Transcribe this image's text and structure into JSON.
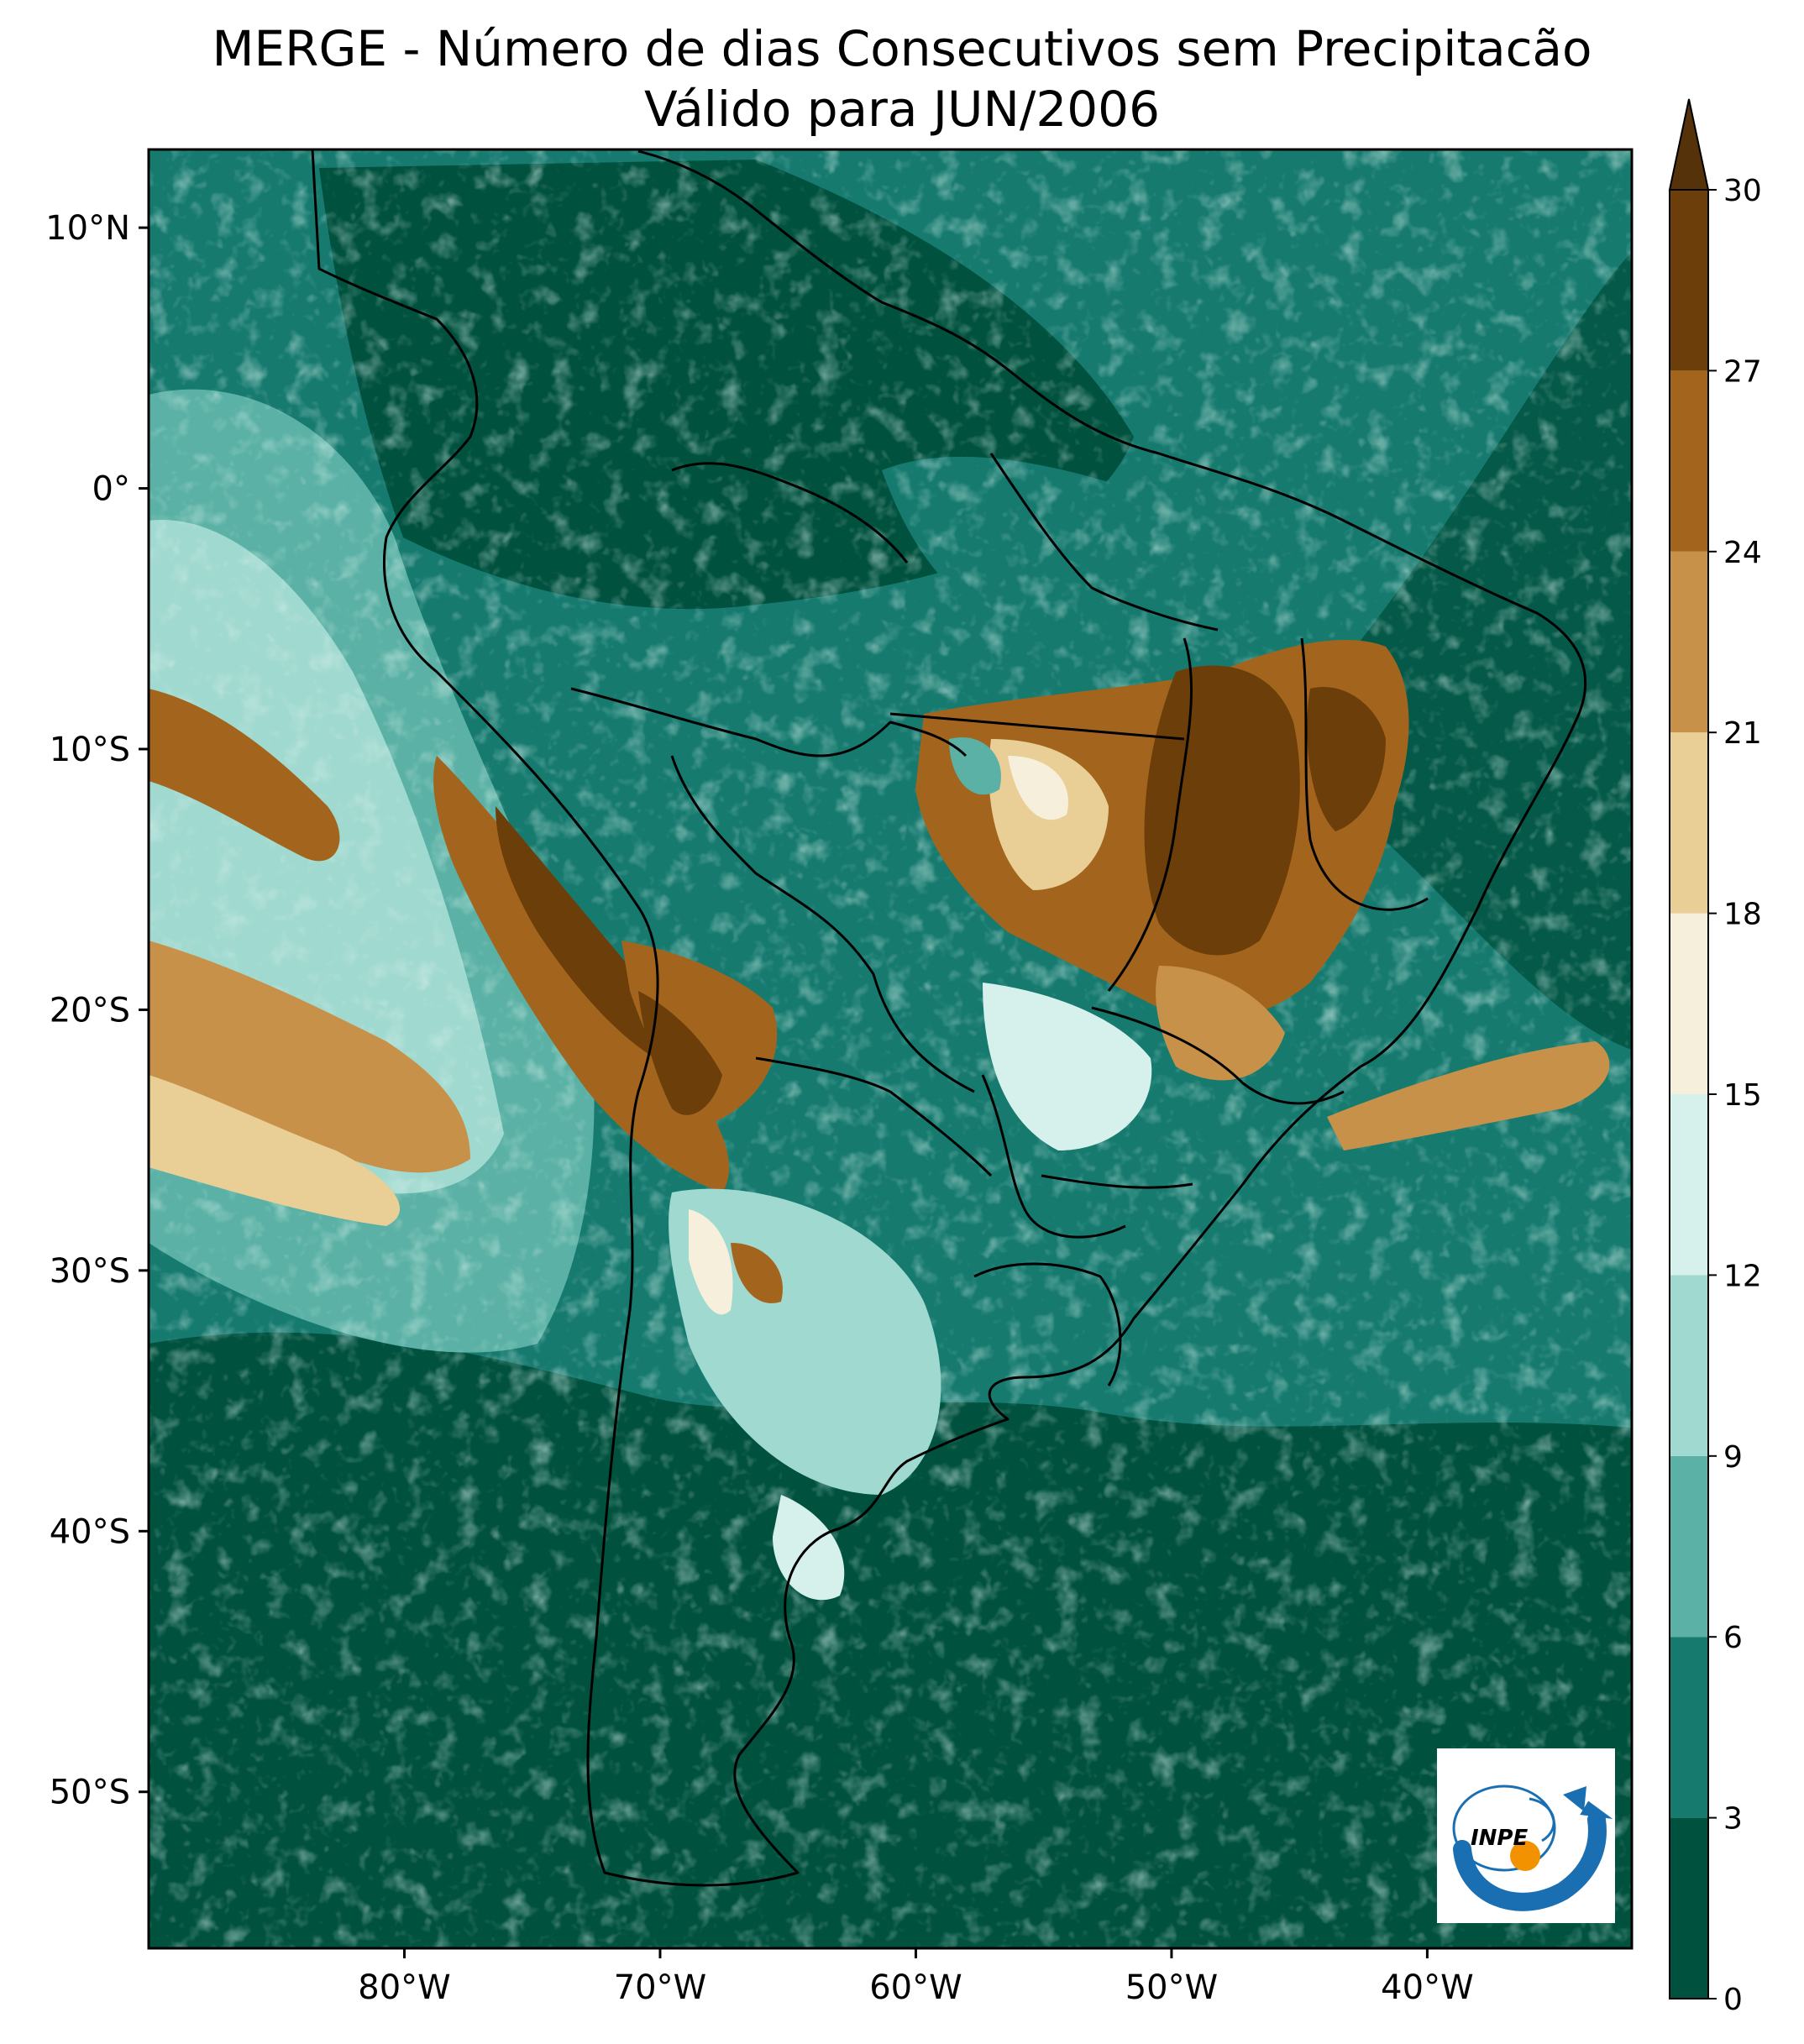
{
  "title": {
    "line1": "MERGE - Número de dias Consecutivos sem Precipitacão",
    "line2": "Válido para JUN/2006"
  },
  "chart_data": {
    "type": "heatmap",
    "map_extent": {
      "lon": [
        -90,
        -32
      ],
      "lat": [
        -56,
        13
      ]
    },
    "x_ticks": [
      {
        "value": -80,
        "label": "80°W"
      },
      {
        "value": -70,
        "label": "70°W"
      },
      {
        "value": -60,
        "label": "60°W"
      },
      {
        "value": -50,
        "label": "50°W"
      },
      {
        "value": -40,
        "label": "40°W"
      }
    ],
    "y_ticks": [
      {
        "value": 10,
        "label": "10°N"
      },
      {
        "value": 0,
        "label": "0°"
      },
      {
        "value": -10,
        "label": "10°S"
      },
      {
        "value": -20,
        "label": "20°S"
      },
      {
        "value": -30,
        "label": "30°S"
      },
      {
        "value": -40,
        "label": "40°S"
      },
      {
        "value": -50,
        "label": "50°S"
      }
    ],
    "colorbar": {
      "levels": [
        0,
        3,
        6,
        9,
        12,
        15,
        18,
        21,
        24,
        27,
        30
      ],
      "labels": [
        "0",
        "3",
        "6",
        "9",
        "12",
        "15",
        "18",
        "21",
        "24",
        "27",
        "30"
      ],
      "colors": [
        "#01513f",
        "#167a6f",
        "#5bb1a5",
        "#a0d9cf",
        "#d6f0ec",
        "#f6efdc",
        "#e9cf96",
        "#c7914a",
        "#a3651d",
        "#6b3e0a"
      ],
      "extend": "max",
      "extend_color": "#553209"
    }
  },
  "logo": {
    "text": "INPE",
    "blue": "#1a6fb3",
    "orange": "#f39200"
  }
}
